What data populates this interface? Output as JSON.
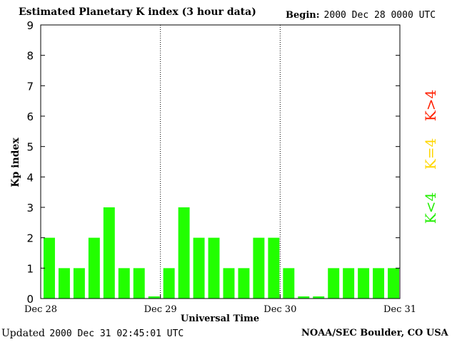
{
  "header": {
    "title": "Estimated Planetary K index (3 hour data)",
    "begin_label": "Begin:",
    "begin_date": "2000 Dec 28 0000 UTC"
  },
  "footer": {
    "updated_label": "Updated",
    "updated_timestamp": "2000 Dec 31 02:45:01 UTC",
    "credit": "NOAA/SEC Boulder, CO USA"
  },
  "legend": {
    "high": {
      "label": "K>4",
      "color": "#ff2000"
    },
    "equal": {
      "label": "K=4",
      "color": "#ffd700"
    },
    "low": {
      "label": "K<4",
      "color": "#22ee00"
    }
  },
  "colors": {
    "bar": "#22ff00",
    "grid": "#000000",
    "axis": "#000000"
  },
  "chart_data": {
    "type": "bar",
    "ylabel": "Kp index",
    "xlabel": "Universal Time",
    "ylim": [
      0,
      9
    ],
    "yticks": [
      0,
      1,
      2,
      3,
      4,
      5,
      6,
      7,
      8,
      9
    ],
    "x_ticks": [
      "Dec 28",
      "Dec 29",
      "Dec 30",
      "Dec 31"
    ],
    "day_dividers": [
      "Dec 29",
      "Dec 30"
    ],
    "bars_per_day": 8,
    "values": [
      2,
      1,
      1,
      2,
      3,
      1,
      1,
      0,
      1,
      3,
      2,
      2,
      1,
      1,
      2,
      2,
      1,
      0,
      0,
      1,
      1,
      1,
      1,
      1
    ],
    "grid": false
  }
}
